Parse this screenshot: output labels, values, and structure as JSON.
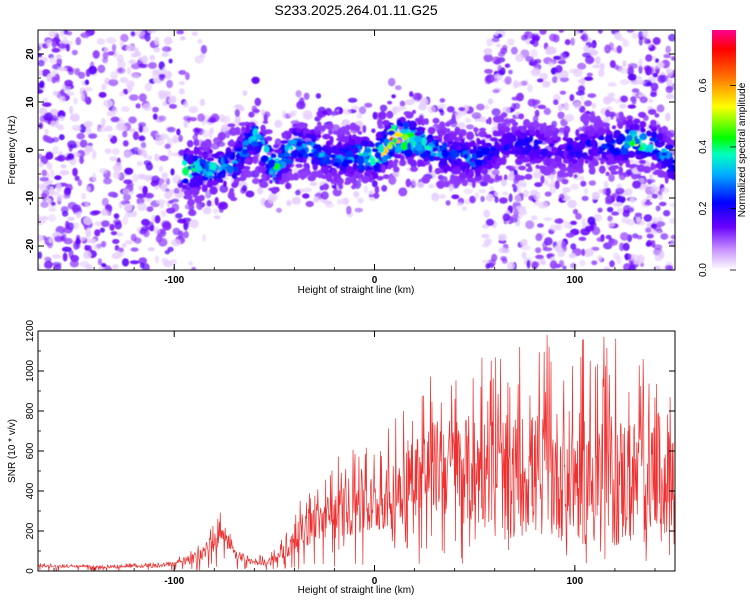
{
  "title": "S233.2025.264.01.11.G25",
  "chart_data": [
    {
      "type": "heatmap",
      "xlabel": "Height of straight line (km)",
      "ylabel": "Frequency (Hz)",
      "xlim": [
        -168,
        150
      ],
      "ylim": [
        -25,
        25
      ],
      "xticks": [
        -100,
        0,
        100
      ],
      "yticks": [
        -20,
        -10,
        0,
        10,
        20
      ],
      "tick_labels_x": [
        "-100",
        "0",
        "100"
      ],
      "tick_labels_y": [
        "-20",
        "-10",
        "0",
        "10",
        "20"
      ],
      "colorbar": {
        "label": "Normalized spectral amplitude",
        "range": [
          0.0,
          0.78
        ],
        "ticks": [
          "0.0",
          "0.2",
          "0.4",
          "0.6"
        ]
      },
      "ridge": {
        "x": [
          -90,
          -80,
          -70,
          -60,
          -50,
          -40,
          -30,
          -20,
          -10,
          0,
          10,
          20,
          30,
          40,
          50,
          60,
          70,
          80,
          90,
          100,
          110,
          120,
          130,
          140,
          150
        ],
        "freq": [
          -4,
          -4,
          -3,
          3,
          -4,
          1,
          0,
          -2,
          -1,
          -2,
          3,
          2,
          0,
          -1,
          -2,
          0,
          1,
          1,
          0,
          0,
          1,
          1,
          2,
          1,
          -3
        ],
        "peak_amplitude": [
          0.4,
          0.35,
          0.3,
          0.35,
          0.4,
          0.3,
          0.3,
          0.25,
          0.3,
          0.45,
          0.7,
          0.4,
          0.3,
          0.25,
          0.3,
          0.2,
          0.2,
          0.2,
          0.15,
          0.2,
          0.2,
          0.25,
          0.5,
          0.3,
          0.3
        ]
      }
    },
    {
      "type": "line",
      "xlabel": "Height of straight line (km)",
      "ylabel": "SNR (10 * v/v)",
      "xlim": [
        -168,
        150
      ],
      "ylim": [
        0,
        1200
      ],
      "xticks": [
        -100,
        0,
        100
      ],
      "yticks": [
        0,
        200,
        400,
        600,
        800,
        1000,
        1200
      ],
      "tick_labels_x": [
        "-100",
        "0",
        "100"
      ],
      "tick_labels_y": [
        "0",
        "200",
        "400",
        "600",
        "800",
        "1000",
        "1200"
      ],
      "series": [
        {
          "color": "#ee3030",
          "x": [
            -168,
            -150,
            -130,
            -110,
            -100,
            -90,
            -85,
            -80,
            -77,
            -75,
            -70,
            -65,
            -60,
            -55,
            -50,
            -45,
            -40,
            -35,
            -30,
            -25,
            -20,
            -15,
            -10,
            -5,
            0,
            5,
            10,
            15,
            20,
            25,
            30,
            40,
            50,
            60,
            70,
            80,
            90,
            100,
            110,
            120,
            130,
            140,
            150
          ],
          "mean": [
            25,
            22,
            20,
            25,
            35,
            60,
            90,
            140,
            170,
            150,
            80,
            55,
            45,
            40,
            55,
            90,
            140,
            200,
            230,
            250,
            270,
            300,
            320,
            310,
            310,
            330,
            380,
            430,
            460,
            480,
            500,
            490,
            470,
            470,
            450,
            450,
            450,
            440,
            420,
            420,
            420,
            440,
            450
          ],
          "peak": [
            40,
            35,
            35,
            45,
            60,
            120,
            180,
            260,
            300,
            260,
            150,
            110,
            80,
            80,
            110,
            180,
            280,
            420,
            450,
            480,
            560,
            600,
            700,
            720,
            620,
            650,
            850,
            900,
            960,
            950,
            1020,
            1080,
            1100,
            1100,
            1120,
            1150,
            1200,
            1150,
            1180,
            1180,
            1130,
            1150,
            1150
          ]
        }
      ]
    }
  ]
}
